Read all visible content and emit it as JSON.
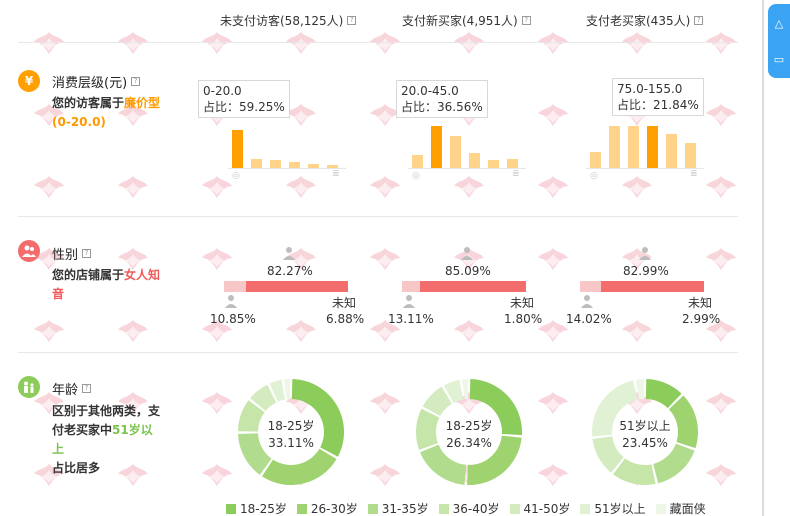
{
  "columns": [
    {
      "label": "未支付访客(58,125人)"
    },
    {
      "label": "支付新买家(4,951人)"
    },
    {
      "label": "支付老买家(435人)"
    }
  ],
  "help_glyph": "?",
  "consumption": {
    "title": "消费层级(元)",
    "icon": "¥",
    "desc_prefix": "您的访客属于",
    "desc_highlight": "廉价型",
    "desc_range": "(0-20.0)",
    "tooltips": [
      {
        "range": "0-20.0",
        "ratio": "占比：59.25%"
      },
      {
        "range": "20.0-45.0",
        "ratio": "占比：36.56%"
      },
      {
        "range": "75.0-155.0",
        "ratio": "占比：21.84%"
      }
    ],
    "bars": [
      [
        0.9,
        0.22,
        0.2,
        0.15,
        0.1,
        0.07
      ],
      [
        0.3,
        1.0,
        0.75,
        0.35,
        0.2,
        0.22
      ],
      [
        0.38,
        1.0,
        1.0,
        1.0,
        0.8,
        0.6
      ]
    ],
    "highlight_index": [
      0,
      1,
      3
    ]
  },
  "gender": {
    "title": "性别",
    "desc_prefix": "您的店铺属于",
    "desc_highlight": "女人知音",
    "groups": [
      {
        "female": "82.27%",
        "male": "10.85%",
        "unknown_label": "未知",
        "unknown": "6.88%",
        "female_ratio": 0.8227
      },
      {
        "female": "85.09%",
        "male": "13.11%",
        "unknown_label": "未知",
        "unknown": "1.80%",
        "female_ratio": 0.8509
      },
      {
        "female": "82.99%",
        "male": "14.02%",
        "unknown_label": "未知",
        "unknown": "2.99%",
        "female_ratio": 0.8299
      }
    ]
  },
  "age": {
    "title": "年龄",
    "desc_line1": "区别于其他两类，支",
    "desc_line2a": "付老买家中",
    "desc_highlight": "51岁以上",
    "desc_line3": "占比居多",
    "donuts": [
      {
        "label": "18-25岁",
        "value": "33.11%",
        "slices": [
          33.11,
          26.5,
          15.2,
          10.8,
          7.4,
          4.5,
          2.49
        ]
      },
      {
        "label": "18-25岁",
        "value": "26.34%",
        "slices": [
          26.34,
          24.6,
          18.2,
          13.5,
          9.1,
          5.8,
          2.46
        ]
      },
      {
        "label": "51岁以上",
        "value": "23.45%",
        "slices": [
          12.5,
          17.8,
          16.1,
          14.3,
          12.6,
          23.45,
          3.25
        ]
      }
    ]
  },
  "legend": [
    {
      "label": "18-25岁",
      "color": "#8ccc5a"
    },
    {
      "label": "26-30岁",
      "color": "#9ed36f"
    },
    {
      "label": "31-35岁",
      "color": "#b2dc8d"
    },
    {
      "label": "36-40岁",
      "color": "#c5e5a9"
    },
    {
      "label": "41-50岁",
      "color": "#d4ebc0"
    },
    {
      "label": "51岁以上",
      "color": "#e1f1d4"
    },
    {
      "label": "藏面侠",
      "color": "#eef6e7"
    }
  ],
  "colors": {
    "bar_highlight": "#ff9f00",
    "bar_normal": "#ffd48a",
    "gender_female": "#f36d6d",
    "gender_other": "#f7c6c6",
    "accent_blue": "#3aa4f3"
  }
}
